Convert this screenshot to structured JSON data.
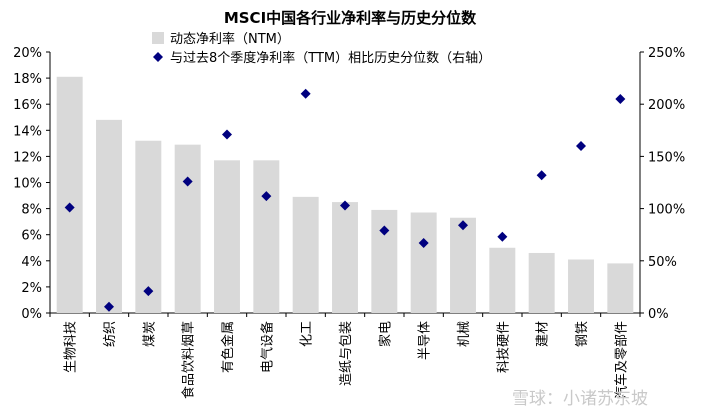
{
  "chart_data": {
    "type": "bar",
    "title": "MSCI中国各行业净利率与历史分位数",
    "categories": [
      "生物科技",
      "纺织",
      "煤炭",
      "食品饮料烟草",
      "有色金属",
      "电气设备",
      "化工",
      "造纸与包装",
      "家电",
      "半导体",
      "机械",
      "科技硬件",
      "建材",
      "钢铁",
      "汽车及零部件"
    ],
    "series": [
      {
        "name": "动态净利率（NTM）",
        "axis": "left",
        "kind": "bar",
        "values": [
          18.1,
          14.8,
          13.2,
          12.9,
          11.7,
          11.7,
          8.9,
          8.5,
          7.9,
          7.7,
          7.3,
          5.0,
          4.6,
          4.1,
          3.8
        ]
      },
      {
        "name": "与过去8个季度净利率（TTM）相比历史分位数（右轴）",
        "axis": "right",
        "kind": "marker",
        "values": [
          101,
          6,
          21,
          126,
          171,
          112,
          210,
          103,
          79,
          67,
          84,
          73,
          132,
          160,
          205
        ]
      }
    ],
    "left_axis": {
      "ylim": [
        0,
        20
      ],
      "ticks": [
        "0%",
        "2%",
        "4%",
        "6%",
        "8%",
        "10%",
        "12%",
        "14%",
        "16%",
        "18%",
        "20%"
      ]
    },
    "right_axis": {
      "ylim": [
        0,
        250
      ],
      "ticks": [
        "0%",
        "50%",
        "100%",
        "150%",
        "200%",
        "250%"
      ]
    },
    "colors": {
      "bar": "#d9d9d9",
      "marker": "#00007f"
    },
    "legend_position": "top-center"
  },
  "watermark": "雪球：小诸苏东坡"
}
